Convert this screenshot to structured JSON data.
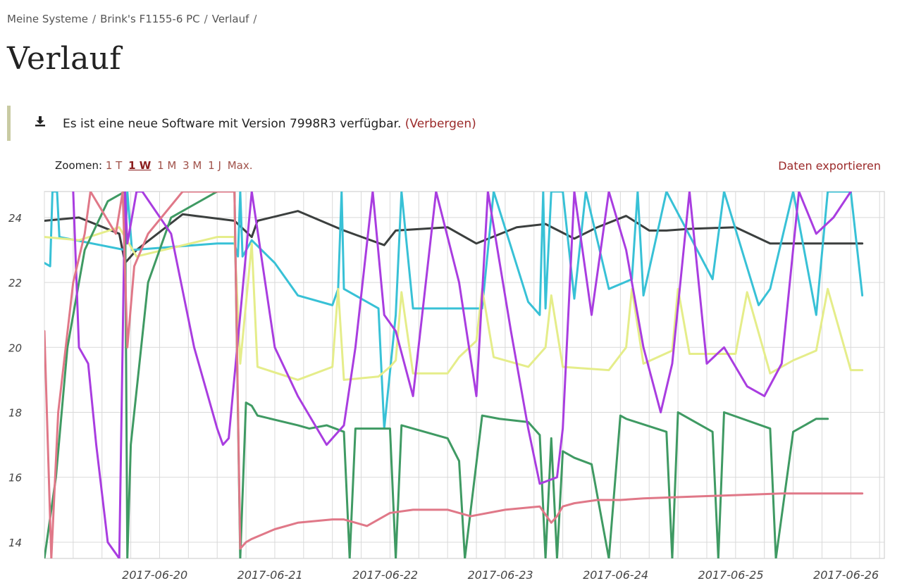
{
  "breadcrumb": {
    "items": [
      "Meine Systeme",
      "Brink's F1155-6 PC",
      "Verlauf"
    ],
    "separator": "/"
  },
  "page_title": "Verlauf",
  "notice": {
    "icon": "download-icon",
    "message": "Es ist eine neue Software mit Version 7998R3 verfügbar.",
    "hide_label": "(Verbergen)"
  },
  "zoom": {
    "label": "Zoomen:",
    "options": [
      "1 T",
      "1 W",
      "1 M",
      "3 M",
      "1 J",
      "Max."
    ],
    "selected": "1 W"
  },
  "export_label": "Daten exportieren",
  "colors": {
    "link": "#9b2a2a",
    "grid": "#d9d9d9",
    "notice_border": "#c9cba3"
  },
  "chart_data": {
    "type": "line",
    "xlabel": "",
    "ylabel": "",
    "ylim": [
      13.5,
      24.8
    ],
    "xlim": [
      "2017-06-19 13:00",
      "2017-06-26 20:00"
    ],
    "y_ticks": [
      14,
      16,
      18,
      20,
      22,
      24
    ],
    "x_ticks": [
      "2017-06-20",
      "2017-06-21",
      "2017-06-22",
      "2017-06-23",
      "2017-06-24",
      "2017-06-25",
      "2017-06-26"
    ],
    "grid": true,
    "series": [
      {
        "color": "#3b3f3e",
        "x": [
          0,
          0.3,
          0.65,
          0.7,
          0.8,
          1.2,
          1.65,
          1.8,
          1.85,
          2.2,
          2.6,
          2.95,
          3.05,
          3.5,
          3.75,
          4.1,
          4.35,
          4.6,
          4.8,
          5.05,
          5.25,
          5.4,
          5.6,
          6.0,
          6.3,
          6.5,
          6.8,
          7.0,
          7.1
        ],
        "y": [
          23.9,
          24.0,
          23.5,
          22.6,
          23.0,
          24.1,
          23.9,
          23.4,
          23.9,
          24.2,
          23.6,
          23.15,
          23.6,
          23.7,
          23.2,
          23.7,
          23.8,
          23.35,
          23.7,
          24.05,
          23.6,
          23.6,
          23.65,
          23.7,
          23.2,
          23.2,
          23.2,
          23.2,
          23.2
        ]
      },
      {
        "color": "#38c1d6",
        "x": [
          0,
          0.05,
          0.07,
          0.09,
          0.11,
          0.13,
          0.7,
          0.72,
          0.76,
          1.5,
          1.65,
          1.68,
          1.7,
          1.72,
          1.8,
          2.0,
          2.2,
          2.5,
          2.55,
          2.58,
          2.6,
          2.9,
          2.95,
          3.05,
          3.1,
          3.2,
          3.8,
          3.9,
          4.2,
          4.3,
          4.33,
          4.35,
          4.4,
          4.5,
          4.6,
          4.7,
          4.9,
          5.1,
          5.15,
          5.2,
          5.4,
          5.8,
          5.9,
          6.2,
          6.3,
          6.5,
          6.7,
          6.8,
          7.0,
          7.1
        ],
        "y": [
          22.6,
          22.5,
          24.8,
          24.8,
          24.8,
          23.4,
          23.0,
          24.8,
          23.0,
          23.2,
          23.2,
          22.8,
          24.8,
          22.8,
          23.3,
          22.6,
          21.6,
          21.3,
          21.8,
          24.8,
          21.8,
          21.2,
          17.5,
          21.0,
          24.8,
          21.2,
          21.2,
          24.8,
          21.4,
          21.0,
          24.8,
          21.2,
          24.8,
          24.8,
          21.5,
          24.8,
          21.8,
          22.1,
          24.8,
          21.6,
          24.8,
          22.1,
          24.8,
          21.3,
          21.8,
          24.8,
          21.0,
          24.8,
          24.8,
          21.6
        ]
      },
      {
        "color": "#e5ed8a",
        "x": [
          0,
          0.3,
          0.65,
          0.8,
          1.5,
          1.65,
          1.7,
          1.8,
          1.85,
          2.2,
          2.5,
          2.55,
          2.6,
          2.9,
          3.0,
          3.05,
          3.1,
          3.2,
          3.5,
          3.6,
          3.75,
          3.8,
          3.9,
          4.2,
          4.35,
          4.4,
          4.5,
          4.9,
          5.05,
          5.1,
          5.2,
          5.45,
          5.5,
          5.6,
          6.0,
          6.1,
          6.3,
          6.5,
          6.7,
          6.8,
          7.0,
          7.1
        ],
        "y": [
          23.4,
          23.3,
          23.7,
          22.8,
          23.4,
          23.4,
          19.5,
          23.2,
          19.4,
          19.0,
          19.4,
          21.8,
          19.0,
          19.1,
          19.4,
          19.6,
          21.7,
          19.2,
          19.2,
          19.7,
          20.2,
          21.8,
          19.7,
          19.4,
          20.0,
          21.6,
          19.4,
          19.3,
          20.0,
          21.8,
          19.5,
          19.9,
          21.8,
          19.8,
          19.8,
          21.7,
          19.2,
          19.6,
          19.9,
          21.8,
          19.3,
          19.3
        ]
      },
      {
        "color": "#3f9a63",
        "x": [
          0,
          0.1,
          0.2,
          0.35,
          0.55,
          0.7,
          0.72,
          0.75,
          0.9,
          1.1,
          1.5,
          1.65,
          1.7,
          1.75,
          1.8,
          1.85,
          2.2,
          2.3,
          2.45,
          2.6,
          2.65,
          2.7,
          3.0,
          3.05,
          3.1,
          3.5,
          3.6,
          3.65,
          3.8,
          3.95,
          4.2,
          4.3,
          4.35,
          4.4,
          4.45,
          4.5,
          4.6,
          4.75,
          4.9,
          5.0,
          5.05,
          5.4,
          5.45,
          5.5,
          5.8,
          5.85,
          5.9,
          6.3,
          6.35,
          6.5,
          6.7,
          6.8
        ],
        "y": [
          13.5,
          16.0,
          20.0,
          23.0,
          24.5,
          24.8,
          13.5,
          17.0,
          22.0,
          24.0,
          24.8,
          24.8,
          13.5,
          18.3,
          18.2,
          17.9,
          17.6,
          17.5,
          17.6,
          17.4,
          13.5,
          17.5,
          17.5,
          13.5,
          17.6,
          17.2,
          16.5,
          13.5,
          17.9,
          17.8,
          17.7,
          17.3,
          13.5,
          17.2,
          13.5,
          16.8,
          16.6,
          16.4,
          13.5,
          17.9,
          17.8,
          17.4,
          13.5,
          18.0,
          17.4,
          13.5,
          18.0,
          17.5,
          13.5,
          17.4,
          17.8,
          17.8
        ]
      },
      {
        "color": "#a93de0",
        "x": [
          0.25,
          0.3,
          0.38,
          0.45,
          0.55,
          0.65,
          0.7,
          0.72,
          0.8,
          0.85,
          1.1,
          1.3,
          1.5,
          1.55,
          1.6,
          1.8,
          2.0,
          2.2,
          2.45,
          2.6,
          2.7,
          2.85,
          2.95,
          3.05,
          3.2,
          3.4,
          3.6,
          3.75,
          3.85,
          4.05,
          4.2,
          4.3,
          4.45,
          4.5,
          4.6,
          4.75,
          4.9,
          5.05,
          5.2,
          5.35,
          5.45,
          5.6,
          5.75,
          5.9,
          6.1,
          6.25,
          6.4,
          6.55,
          6.7,
          6.85,
          7.0
        ],
        "y": [
          24.8,
          20.0,
          19.5,
          17.0,
          14.0,
          13.5,
          24.8,
          23.2,
          24.8,
          24.8,
          23.5,
          20.0,
          17.5,
          17.0,
          17.2,
          24.8,
          20.0,
          18.5,
          17.0,
          17.6,
          20.0,
          24.8,
          21.0,
          20.5,
          18.5,
          24.8,
          22.0,
          18.5,
          24.8,
          20.5,
          17.5,
          15.8,
          16.0,
          17.5,
          24.8,
          21.0,
          24.8,
          23.0,
          20.0,
          18.0,
          19.5,
          24.8,
          19.5,
          20.0,
          18.8,
          18.5,
          19.5,
          24.8,
          23.5,
          24.0,
          24.8
        ]
      },
      {
        "color": "#e07888",
        "x": [
          0,
          0.06,
          0.12,
          0.25,
          0.35,
          0.4,
          0.62,
          0.68,
          0.72,
          0.78,
          0.9,
          1.2,
          1.5,
          1.65,
          1.7,
          1.75,
          1.8,
          2.0,
          2.2,
          2.5,
          2.6,
          2.8,
          3.0,
          3.2,
          3.5,
          3.7,
          4.0,
          4.3,
          4.4,
          4.45,
          4.5,
          4.6,
          4.8,
          5.0,
          5.2,
          5.6,
          6.0,
          6.4,
          6.8,
          7.1
        ],
        "y": [
          20.5,
          13.5,
          18.0,
          22.0,
          23.5,
          24.8,
          23.5,
          24.8,
          20.0,
          22.5,
          23.5,
          24.8,
          24.8,
          24.8,
          13.8,
          14.0,
          14.1,
          14.4,
          14.6,
          14.7,
          14.7,
          14.5,
          14.9,
          15.0,
          15.0,
          14.8,
          15.0,
          15.1,
          14.6,
          14.8,
          15.1,
          15.2,
          15.3,
          15.3,
          15.35,
          15.4,
          15.45,
          15.5,
          15.5,
          15.5
        ]
      }
    ]
  }
}
